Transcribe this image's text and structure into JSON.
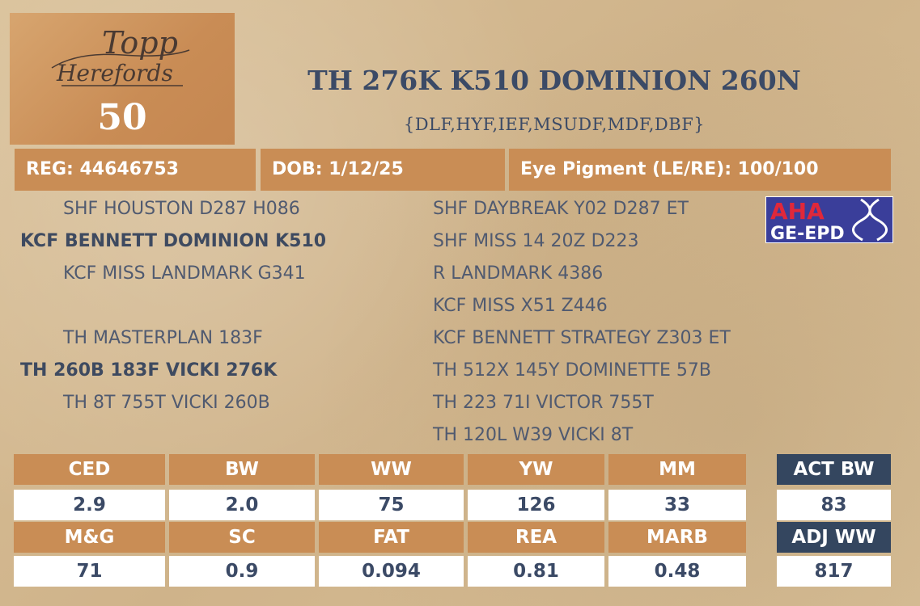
{
  "logo": {
    "line1": "Topp",
    "line2": "Herefords"
  },
  "lot_number": "50",
  "animal": {
    "name": "TH 276K K510 DOMINION 260N",
    "designations": "{DLF,HYF,IEF,MSUDF,MDF,DBF}"
  },
  "info": {
    "reg": "REG: 44646753",
    "dob": "DOB: 1/12/25",
    "eye_pigment": "Eye Pigment (LE/RE): 100/100"
  },
  "badge": {
    "line1": "AHA",
    "line2": "GE-EPD"
  },
  "pedigree": {
    "left": [
      "SHF HOUSTON D287 H086",
      "KCF BENNETT DOMINION K510",
      "KCF MISS LANDMARK G341",
      "TH MASTERPLAN 183F",
      "TH 260B 183F VICKI 276K",
      "TH 8T 755T VICKI 260B"
    ],
    "right": [
      "SHF DAYBREAK Y02 D287 ET",
      "SHF MISS 14 20Z D223",
      "R LANDMARK 4386",
      "KCF MISS X51 Z446",
      "KCF BENNETT STRATEGY Z303 ET",
      "TH 512X 145Y DOMINETTE 57B",
      "TH 223 71I VICTOR 755T",
      "TH 120L W39 VICKI 8T"
    ]
  },
  "epds": {
    "row1": [
      {
        "label": "CED",
        "value": "2.9"
      },
      {
        "label": "BW",
        "value": "2.0"
      },
      {
        "label": "WW",
        "value": "75"
      },
      {
        "label": "YW",
        "value": "126"
      },
      {
        "label": "MM",
        "value": "33"
      }
    ],
    "row2": [
      {
        "label": "M&G",
        "value": "71"
      },
      {
        "label": "SC",
        "value": "0.9"
      },
      {
        "label": "FAT",
        "value": "0.094"
      },
      {
        "label": "REA",
        "value": "0.81"
      },
      {
        "label": "MARB",
        "value": "0.48"
      }
    ]
  },
  "actuals": [
    {
      "label": "ACT BW",
      "value": "83"
    },
    {
      "label": "ADJ WW",
      "value": "817"
    }
  ],
  "colors": {
    "background": "#d6bc93",
    "accent_tan": "#c98d55",
    "navy": "#34465f",
    "text": "#3b4a66"
  }
}
